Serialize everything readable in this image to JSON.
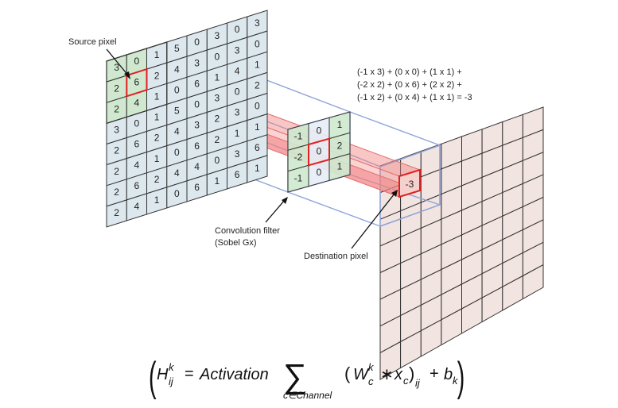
{
  "source_grid": {
    "rows": [
      [
        "3",
        "0",
        "1",
        "5",
        "0",
        "3",
        "0",
        "3"
      ],
      [
        "2",
        "6",
        "2",
        "4",
        "3",
        "0",
        "3",
        "0"
      ],
      [
        "2",
        "4",
        "1",
        "0",
        "6",
        "1",
        "4",
        "1"
      ],
      [
        "3",
        "0",
        "1",
        "5",
        "0",
        "3",
        "0",
        "2"
      ],
      [
        "2",
        "6",
        "2",
        "4",
        "3",
        "2",
        "3",
        "0"
      ],
      [
        "2",
        "4",
        "1",
        "0",
        "6",
        "2",
        "1",
        "1"
      ],
      [
        "2",
        "6",
        "2",
        "4",
        "4",
        "0",
        "3",
        "6"
      ],
      [
        "2",
        "4",
        "1",
        "0",
        "6",
        "1",
        "6",
        "1"
      ]
    ],
    "highlight_color": "#cfe8cf",
    "cell_color": "#dde8ee"
  },
  "filter": {
    "rows": [
      [
        "-1",
        "0",
        "1"
      ],
      [
        "-2",
        "0",
        "2"
      ],
      [
        "-1",
        "0",
        "1"
      ]
    ]
  },
  "destination": {
    "value": "-3",
    "cell_color": "#f2e4e0"
  },
  "labels": {
    "source_pixel": "Source pixel",
    "filter_line1": "Convolution filter",
    "filter_line2": "(Sobel Gx)",
    "destination_pixel": "Destination pixel"
  },
  "calculation": [
    "(-1 x 3) + (0 x 0) + (1 x 1) +",
    "(-2 x 2) + (0 x 6) + (2 x 2) +",
    "(-1 x 2) + (0 x 4) + (1 x 1)  = -3"
  ],
  "formula": {
    "lhs_H": "H",
    "lhs_sup": "k",
    "lhs_sub": "ij",
    "equals": "=",
    "activation": "Activation",
    "sum_sub": "c∈Channel",
    "W": "W",
    "W_sup": "k",
    "W_sub": "c",
    "conv": "∗",
    "x": "x",
    "x_sub": "c",
    "ij": "ij",
    "plus": "+",
    "b": "b",
    "b_sub": "k"
  },
  "colors": {
    "grid_line": "#333333",
    "highlight": "#e02020",
    "beam": "#f28080",
    "frame": "#8fa3d9"
  }
}
